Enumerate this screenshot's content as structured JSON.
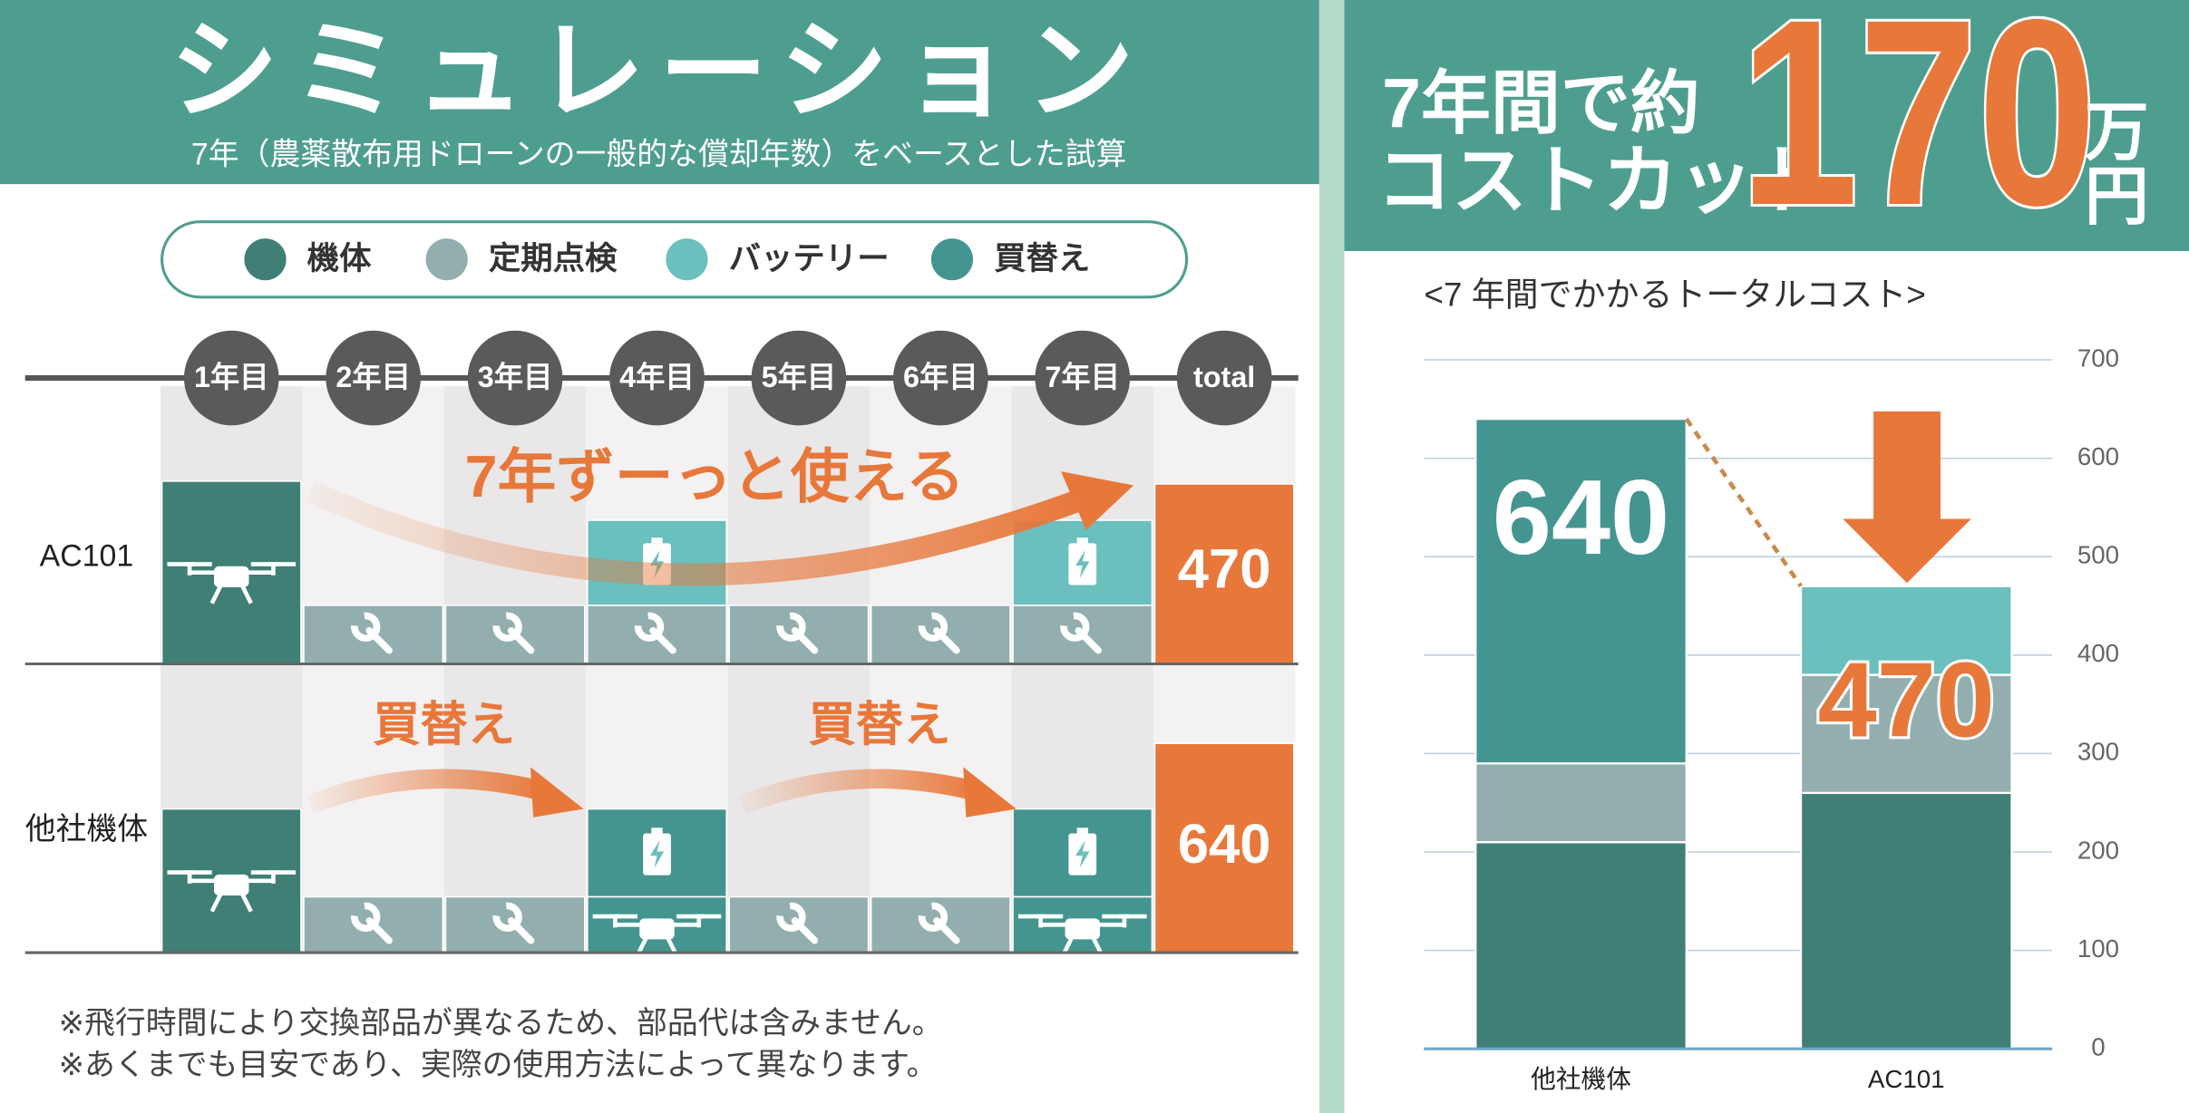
{
  "header": {
    "title": "シミュレーション",
    "subtitle": "7年（農薬散布用ドローンの一般的な償却年数）をベースとした試算"
  },
  "headline": {
    "line1": "7年間で約",
    "line2": "コストカット",
    "amount": "170",
    "unit": "万円"
  },
  "years": [
    "1年目",
    "2年目",
    "3年目",
    "4年目",
    "5年目",
    "6年目",
    "7年目",
    "total"
  ],
  "rows": [
    {
      "label": "AC101",
      "total": "470",
      "annotation": "7年ずーっと使える"
    },
    {
      "label": "他社機体",
      "total": "640",
      "annotations": [
        "買替え",
        "買替え"
      ]
    }
  ],
  "notes": [
    "※飛行時間により交換部品が異なるため、部品代は含みません。",
    "※あくまでも目安であり、実際の使用方法によって異なります。"
  ],
  "chart_data": {
    "type": "bar",
    "stacked": true,
    "title": "<7 年間でかかるトータルコスト>",
    "categories": [
      "他社機体",
      "AC101"
    ],
    "series": [
      {
        "name": "機体",
        "color": "#3f7f76",
        "values": [
          210,
          260
        ]
      },
      {
        "name": "定期点検",
        "color": "#93aeae",
        "values": [
          80,
          120
        ]
      },
      {
        "name": "バッテリー",
        "color": "#6bbfbd",
        "values": [
          0,
          90
        ]
      },
      {
        "name": "買替え",
        "color": "#449590",
        "values": [
          350,
          0
        ]
      }
    ],
    "totals": [
      640,
      470
    ],
    "ylim": [
      0,
      700
    ],
    "yticks": [
      0,
      100,
      200,
      300,
      400,
      500,
      600,
      700
    ],
    "grid": true
  }
}
